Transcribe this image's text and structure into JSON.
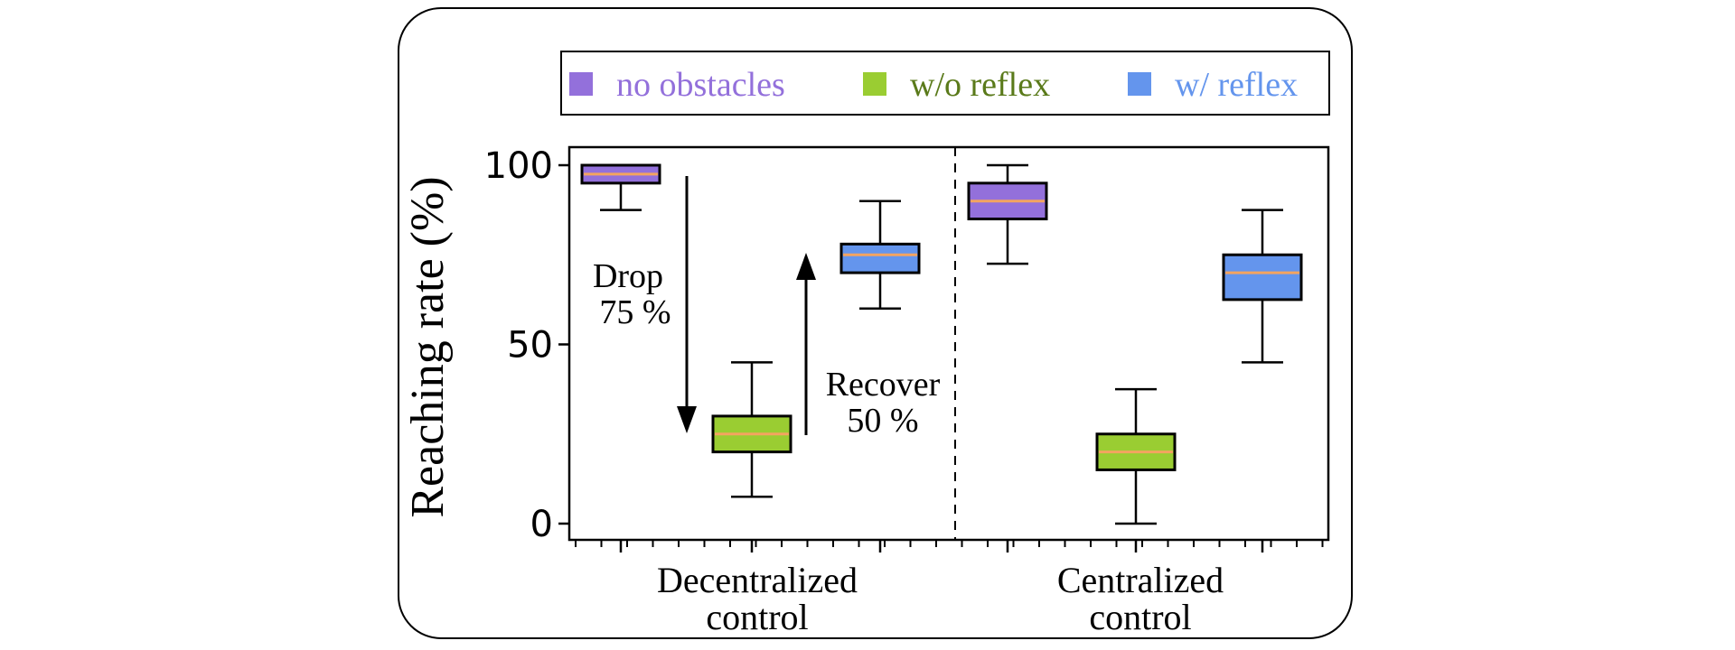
{
  "chart_data": {
    "type": "box",
    "ylabel": "Reaching rate (%)",
    "ylim": [
      0,
      100
    ],
    "yticks": [
      0,
      50,
      100
    ],
    "groups": [
      "Decentralized control",
      "Centralized control"
    ],
    "group_label_lines": [
      [
        "Decentralized",
        "control"
      ],
      [
        "Centralized",
        "control"
      ]
    ],
    "legend": {
      "location": "top, above plot",
      "entries": [
        {
          "name": "no obstacles",
          "color": "#9370db",
          "text_color": "#9370db"
        },
        {
          "name": "w/o reflex",
          "color": "#9acd32",
          "text_color": "#5a7a1a"
        },
        {
          "name": "w/ reflex",
          "color": "#6495ed",
          "text_color": "#6495ed"
        }
      ]
    },
    "median_color": "#f4a460",
    "boxes": [
      {
        "group": "Decentralized control",
        "series": "no obstacles",
        "whisker_low": 87.5,
        "q1": 95,
        "median": 97.5,
        "q3": 100,
        "whisker_high": 100
      },
      {
        "group": "Decentralized control",
        "series": "w/o reflex",
        "whisker_low": 7.5,
        "q1": 20,
        "median": 25,
        "q3": 30,
        "whisker_high": 45
      },
      {
        "group": "Decentralized control",
        "series": "w/ reflex",
        "whisker_low": 60,
        "q1": 70,
        "median": 75,
        "q3": 78,
        "whisker_high": 90
      },
      {
        "group": "Centralized control",
        "series": "no obstacles",
        "whisker_low": 72.5,
        "q1": 85,
        "median": 90,
        "q3": 95,
        "whisker_high": 100
      },
      {
        "group": "Centralized control",
        "series": "w/o reflex",
        "whisker_low": 0,
        "q1": 15,
        "median": 20,
        "q3": 25,
        "whisker_high": 37.5
      },
      {
        "group": "Centralized control",
        "series": "w/ reflex",
        "whisker_low": 45,
        "q1": 62.5,
        "median": 70,
        "q3": 75,
        "whisker_high": 87.5
      }
    ],
    "annotations": [
      {
        "lines": [
          "Drop",
          "75 %"
        ],
        "arrow": "down",
        "from_value": 100,
        "to_value": 25
      },
      {
        "lines": [
          "Recover",
          "50 %"
        ],
        "arrow": "up",
        "from_value": 25,
        "to_value": 75
      }
    ],
    "divider": "dashed line between groups"
  }
}
